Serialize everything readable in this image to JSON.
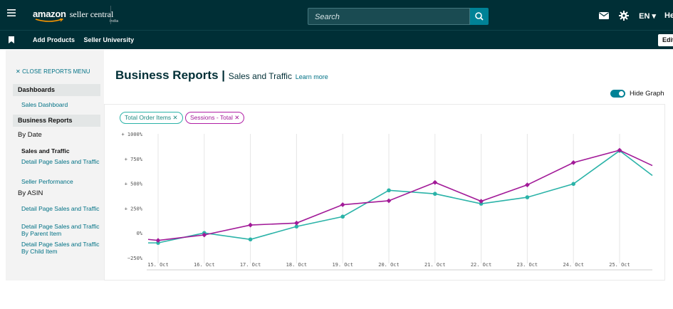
{
  "header": {
    "menu_icon": "hamburger-icon",
    "logo": {
      "amazon": "amazon",
      "seller_central": "seller central",
      "region": "india"
    },
    "search": {
      "placeholder": "Search"
    },
    "lang": "EN ▾",
    "help_label": "Help"
  },
  "subbar": {
    "links": [
      "Add Products",
      "Seller University"
    ],
    "edit_label": "Edit"
  },
  "sidebar": {
    "close_label": "✕ CLOSE REPORTS MENU",
    "dashboards_head": "Dashboards",
    "dashboards_links": [
      "Sales Dashboard"
    ],
    "business_head": "Business Reports",
    "by_date_label": "By Date",
    "by_date_active": "Sales and Traffic",
    "by_date_links": [
      "Detail Page Sales and Traffic",
      "Seller Performance"
    ],
    "by_asin_label": "By ASIN",
    "by_asin_links": [
      "Detail Page Sales and Traffic",
      "Detail Page Sales and Traffic By Parent Item",
      "Detail Page Sales and Traffic By Child Item"
    ]
  },
  "main": {
    "title": "Business Reports",
    "title_separator": "|",
    "subtitle": "Sales and Traffic",
    "learn_more": "Learn more",
    "toggle_label": "Hide Graph",
    "chips": [
      {
        "label": "Total Order Items ✕",
        "color": "#2bb3a8"
      },
      {
        "label": "Sessions - Total ✕",
        "color": "#b01fa5"
      }
    ]
  },
  "chart_data": {
    "type": "line",
    "x": [
      "15. Oct",
      "16. Oct",
      "17. Oct",
      "18. Oct",
      "19. Oct",
      "20. Oct",
      "21. Oct",
      "22. Oct",
      "23. Oct",
      "24. Oct",
      "25. Oct"
    ],
    "y_ticks": [
      "+ 1000%",
      "+ 750%",
      "+ 500%",
      "+ 250%",
      "0%",
      "−250%"
    ],
    "ylim": [
      -250,
      1000
    ],
    "grid": "vertical",
    "series": [
      {
        "name": "Total Order Items",
        "color": "#2bb3a8",
        "values": [
          -100,
          0,
          -65,
          65,
          165,
          430,
          395,
          295,
          360,
          495,
          830
        ],
        "trailing": 580
      },
      {
        "name": "Sessions - Total",
        "color": "#a21a98",
        "values": [
          -75,
          -20,
          80,
          100,
          285,
          325,
          510,
          320,
          485,
          710,
          835
        ],
        "trailing": 680
      }
    ]
  }
}
